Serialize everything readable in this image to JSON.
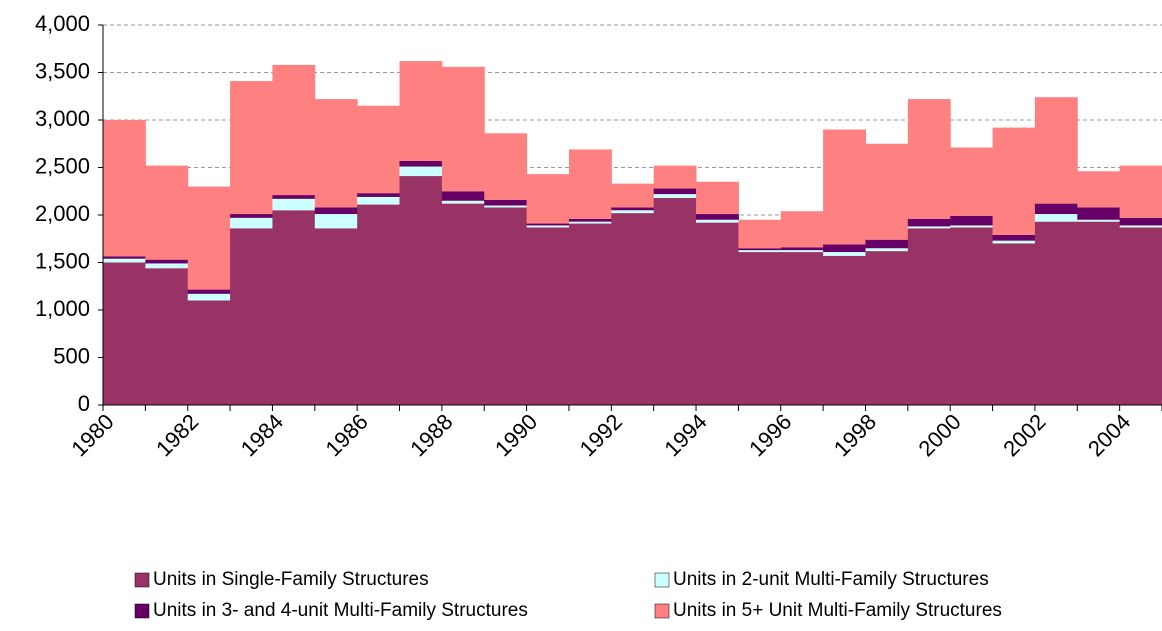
{
  "chart_data": {
    "type": "stacked-bar",
    "categories": [
      "1980",
      null,
      "1982",
      null,
      "1984",
      null,
      "1986",
      null,
      "1988",
      null,
      "1990",
      null,
      "1992",
      null,
      "1994",
      null,
      "1996",
      null,
      "1998",
      null,
      "2000",
      null,
      "2002",
      null,
      "2004"
    ],
    "series": [
      {
        "name": "Units in Single-Family Structures",
        "color": "#993366",
        "values": [
          1500,
          1440,
          1100,
          1860,
          2050,
          1860,
          2110,
          2410,
          2120,
          2080,
          1870,
          1910,
          2020,
          2180,
          1920,
          1610,
          1610,
          1570,
          1620,
          1860,
          1870,
          1700,
          1930,
          1930,
          1870
        ]
      },
      {
        "name": "Units in 2-unit Multi-Family Structures",
        "color": "#ccffff",
        "values": [
          40,
          50,
          70,
          110,
          120,
          150,
          80,
          100,
          30,
          20,
          20,
          20,
          30,
          40,
          30,
          20,
          20,
          40,
          30,
          20,
          20,
          30,
          80,
          20,
          20
        ]
      },
      {
        "name": "Units in 3- and 4-unit Multi-Family Structures",
        "color": "#660066",
        "values": [
          25,
          40,
          45,
          40,
          40,
          70,
          40,
          60,
          100,
          60,
          20,
          30,
          30,
          60,
          60,
          20,
          30,
          80,
          90,
          80,
          100,
          60,
          110,
          130,
          80
        ]
      },
      {
        "name": "Units in 5+ Unit Multi-Family Structures",
        "color": "#ff8080",
        "values": [
          1435,
          990,
          1085,
          1400,
          1370,
          1140,
          920,
          1050,
          1310,
          700,
          520,
          730,
          250,
          240,
          340,
          300,
          380,
          1210,
          1010,
          1260,
          720,
          1130,
          1120,
          380,
          550
        ]
      }
    ],
    "ylim": [
      0,
      4000
    ],
    "yticks": [
      0,
      500,
      {
        "value": 1000,
        "label": "1,000"
      },
      {
        "value": 1500,
        "label": "1,500"
      },
      {
        "value": 2000,
        "label": "2,000"
      },
      {
        "value": 2500,
        "label": "2,500"
      },
      {
        "value": 3000,
        "label": "3,000"
      },
      {
        "value": 3500,
        "label": "3,500"
      },
      {
        "value": 4000,
        "label": "4,000"
      }
    ],
    "grid": true
  }
}
